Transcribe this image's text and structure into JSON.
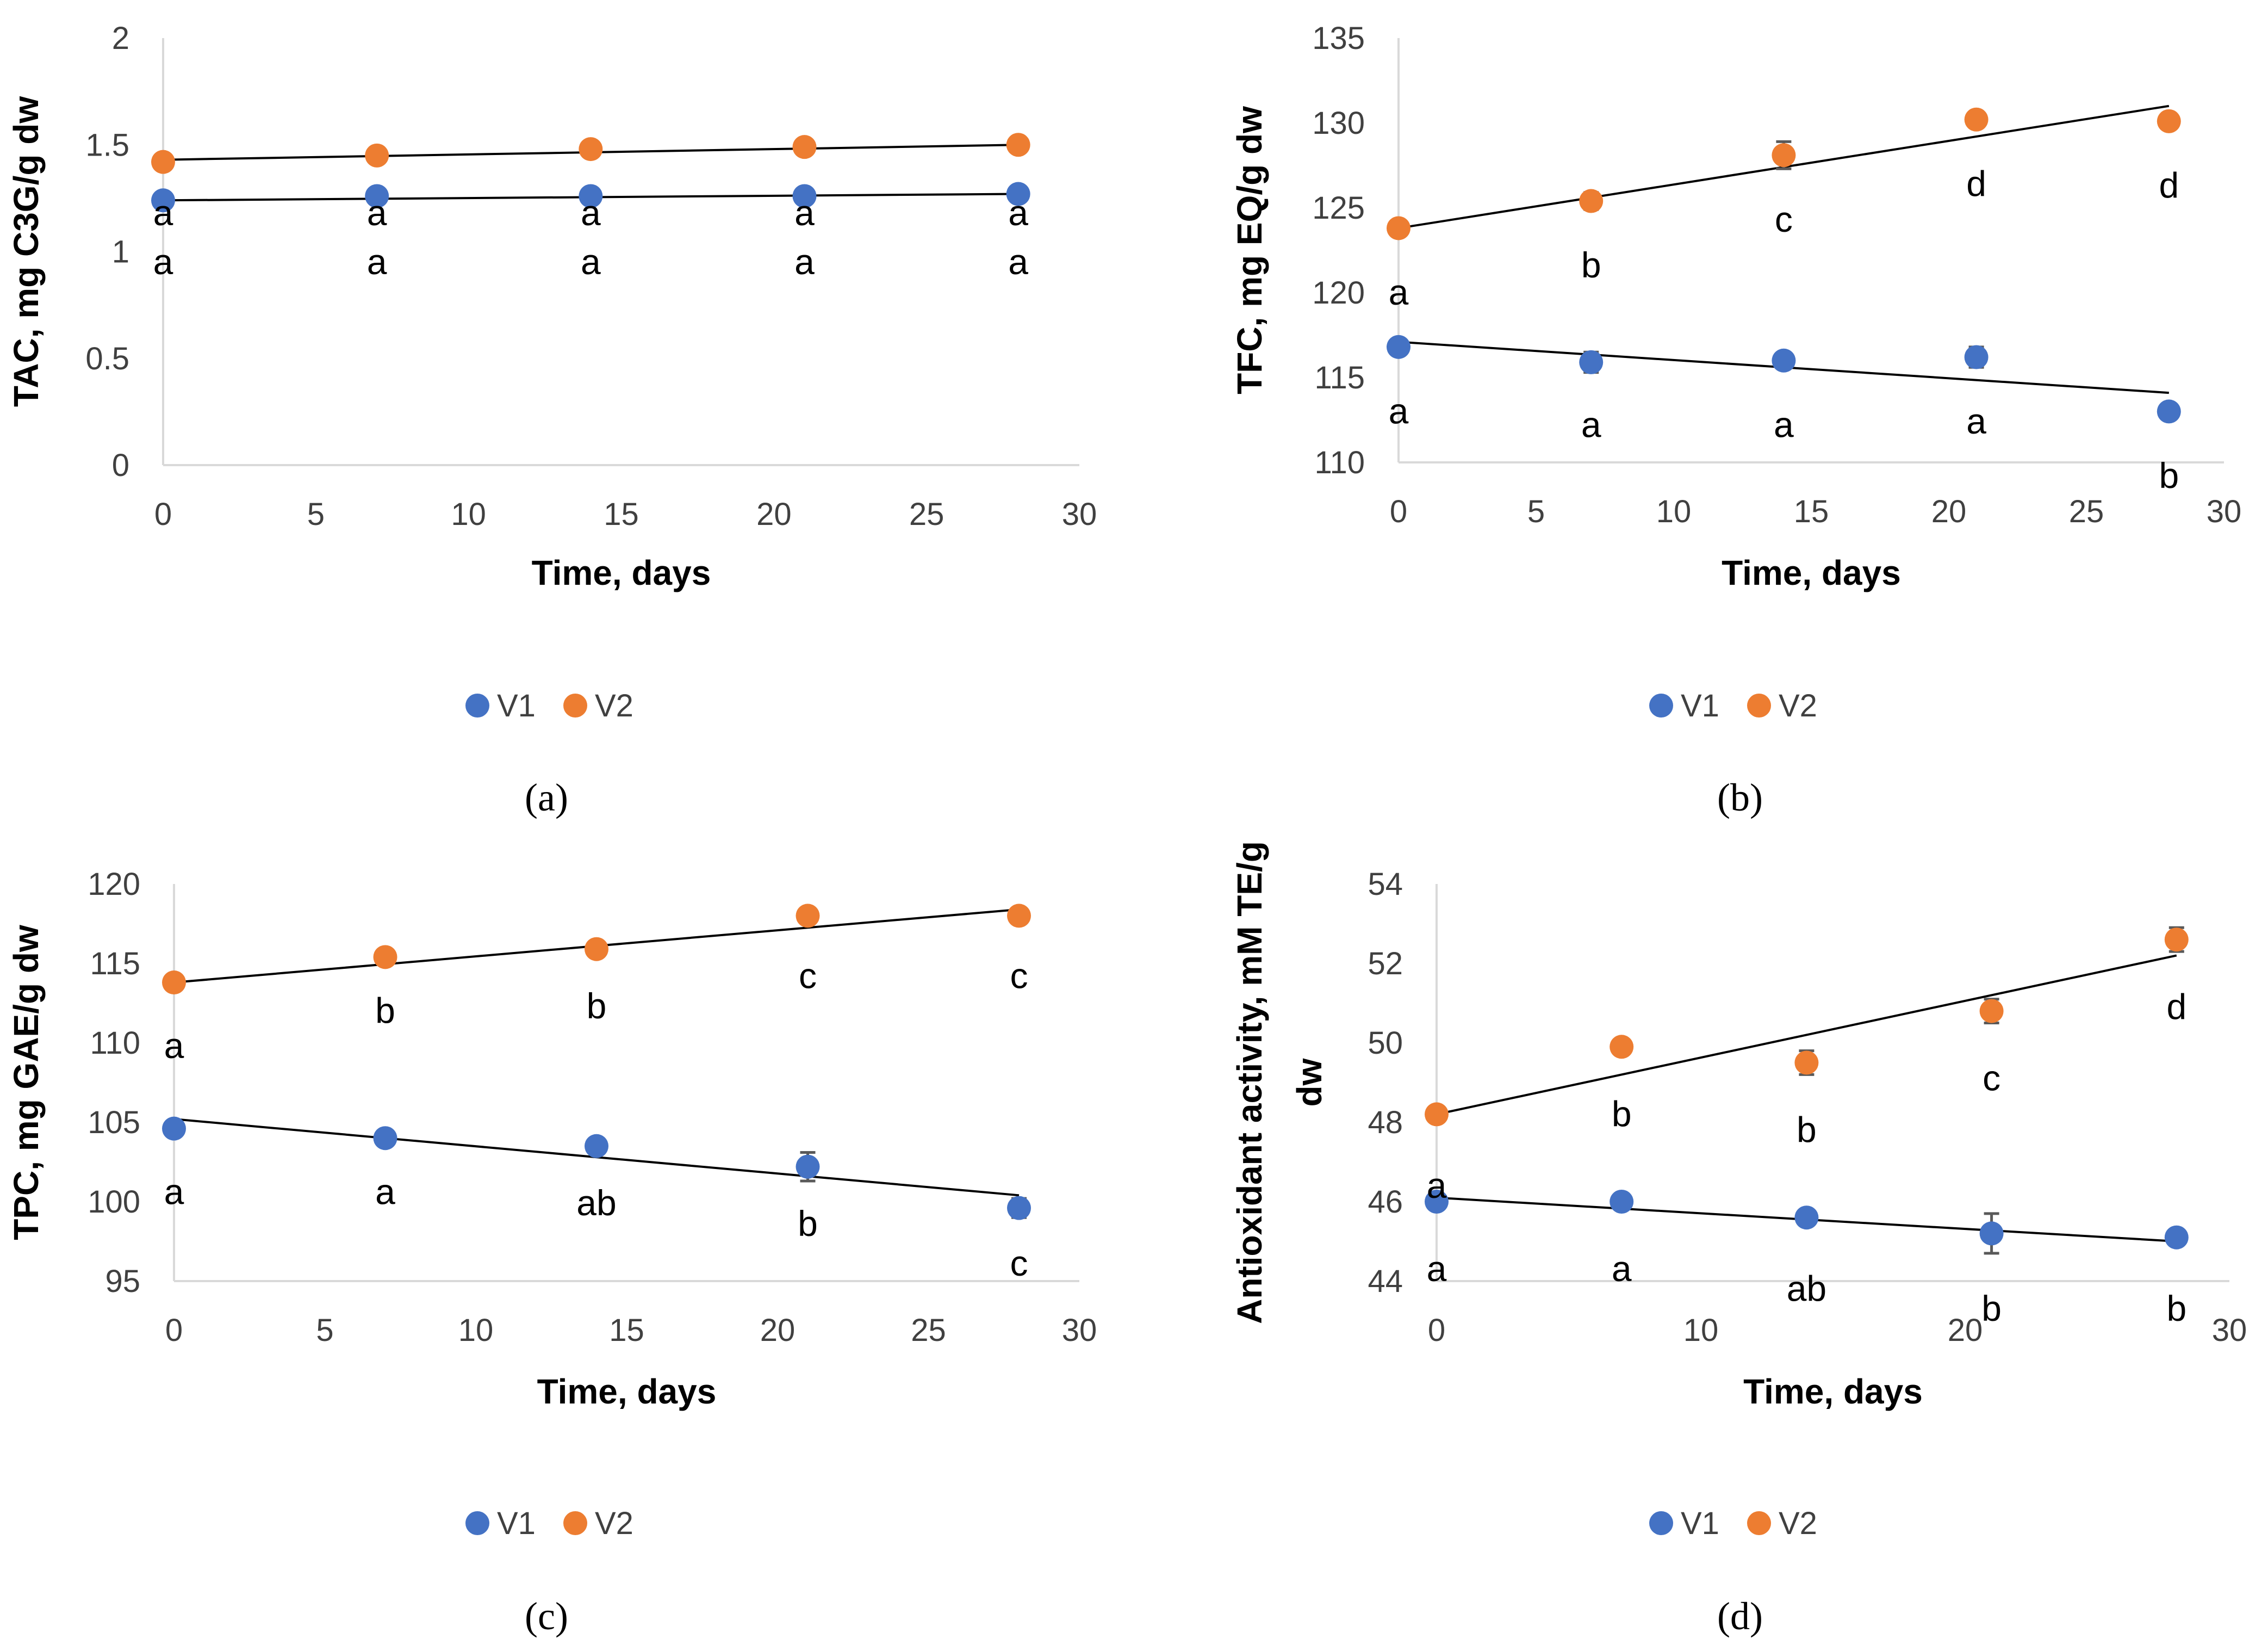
{
  "colors": {
    "V1": "#4472C4",
    "V2": "#ED7D31",
    "axis": "#D9D9D9",
    "trend": "#000000",
    "errorbar": "#595959"
  },
  "chart_data": [
    {
      "id": "a",
      "panel_label": "(a)",
      "type": "scatter",
      "xlabel": "Time, days",
      "ylabel": "TAC, mg C3G/g dw",
      "xlim": [
        0,
        30
      ],
      "ylim": [
        0,
        2
      ],
      "x_ticks": [
        "0",
        "5",
        "10",
        "15",
        "20",
        "25",
        "30"
      ],
      "y_ticks": [
        "0",
        "0.5",
        "1",
        "1.5",
        "2"
      ],
      "legend": [
        "V1",
        "V2"
      ],
      "series": [
        {
          "name": "V1",
          "x": [
            0,
            7,
            14,
            21,
            28
          ],
          "y": [
            1.24,
            1.26,
            1.26,
            1.26,
            1.27
          ],
          "err": [
            0.01,
            0.01,
            0.02,
            0.01,
            0.01
          ],
          "letters": [
            "a",
            "a",
            "a",
            "a",
            "a"
          ],
          "letter_y": [
            0.95,
            0.95,
            0.95,
            0.95,
            0.95
          ],
          "trend": [
            1.24,
            1.27
          ]
        },
        {
          "name": "V2",
          "x": [
            0,
            7,
            14,
            21,
            28
          ],
          "y": [
            1.42,
            1.45,
            1.48,
            1.49,
            1.5
          ],
          "err": [
            0.01,
            0.01,
            0.03,
            0.01,
            0.01
          ],
          "letters": [
            "a",
            "a",
            "a",
            "a",
            "a"
          ],
          "letter_y": [
            1.18,
            1.18,
            1.18,
            1.18,
            1.18
          ],
          "trend": [
            1.43,
            1.5
          ]
        }
      ]
    },
    {
      "id": "b",
      "panel_label": "(b)",
      "type": "scatter",
      "xlabel": "Time, days",
      "ylabel": "TFC, mg EQ/g dw",
      "xlim": [
        0,
        30
      ],
      "ylim": [
        110,
        135
      ],
      "x_ticks": [
        "0",
        "5",
        "10",
        "15",
        "20",
        "25",
        "30"
      ],
      "y_ticks": [
        "110",
        "115",
        "120",
        "125",
        "130",
        "135"
      ],
      "legend": [
        "V1",
        "V2"
      ],
      "series": [
        {
          "name": "V1",
          "x": [
            0,
            7,
            14,
            21,
            28
          ],
          "y": [
            116.8,
            115.9,
            116.0,
            116.2,
            113.0
          ],
          "err": [
            0.2,
            0.6,
            0.4,
            0.6,
            0.4
          ],
          "letters": [
            "a",
            "a",
            "a",
            "a",
            "b"
          ],
          "letter_y": [
            113.0,
            112.2,
            112.2,
            112.4,
            109.2
          ],
          "trend": [
            117.1,
            114.1
          ]
        },
        {
          "name": "V2",
          "x": [
            0,
            7,
            14,
            21,
            28
          ],
          "y": [
            123.8,
            125.4,
            128.1,
            130.2,
            130.1
          ],
          "err": [
            0.2,
            0.5,
            0.8,
            0.2,
            0.4
          ],
          "letters": [
            "a",
            "b",
            "c",
            "d",
            "d"
          ],
          "letter_y": [
            120.0,
            121.6,
            124.3,
            126.4,
            126.3
          ],
          "trend": [
            123.8,
            131.0
          ]
        }
      ]
    },
    {
      "id": "c",
      "panel_label": "(c)",
      "type": "scatter",
      "xlabel": "Time, days",
      "ylabel": "TPC, mg GAE/g dw",
      "xlim": [
        0,
        30
      ],
      "ylim": [
        95,
        120
      ],
      "x_ticks": [
        "0",
        "5",
        "10",
        "15",
        "20",
        "25",
        "30"
      ],
      "y_ticks": [
        "95",
        "100",
        "105",
        "110",
        "115",
        "120"
      ],
      "legend": [
        "V1",
        "V2"
      ],
      "series": [
        {
          "name": "V1",
          "x": [
            0,
            7,
            14,
            21,
            28
          ],
          "y": [
            104.6,
            104.0,
            103.5,
            102.2,
            99.6
          ],
          "err": [
            0.2,
            0.2,
            0.3,
            0.9,
            0.6
          ],
          "letters": [
            "a",
            "a",
            "ab",
            "b",
            "c"
          ],
          "letter_y": [
            100.6,
            100.6,
            99.9,
            98.6,
            96.1
          ],
          "trend": [
            105.2,
            100.4
          ]
        },
        {
          "name": "V2",
          "x": [
            0,
            7,
            14,
            21,
            28
          ],
          "y": [
            113.8,
            115.4,
            115.9,
            118.0,
            118.0
          ],
          "err": [
            0.2,
            0.2,
            0.2,
            0.2,
            0.2
          ],
          "letters": [
            "a",
            "b",
            "b",
            "c",
            "c"
          ],
          "letter_y": [
            109.8,
            112.0,
            112.3,
            114.2,
            114.2
          ],
          "trend": [
            113.8,
            118.4
          ]
        }
      ]
    },
    {
      "id": "d",
      "panel_label": "(d)",
      "type": "scatter",
      "xlabel": "Time, days",
      "ylabel": "Antioxidant activity, mM TE/g dw",
      "xlim": [
        0,
        30
      ],
      "ylim": [
        44,
        54
      ],
      "x_ticks": [
        "0",
        "10",
        "20",
        "30"
      ],
      "y_ticks": [
        "44",
        "46",
        "48",
        "50",
        "52",
        "54"
      ],
      "legend": [
        "V1",
        "V2"
      ],
      "series": [
        {
          "name": "V1",
          "x": [
            0,
            7,
            14,
            21,
            28
          ],
          "y": [
            46.0,
            46.0,
            45.6,
            45.2,
            45.1
          ],
          "err": [
            0.1,
            0.1,
            0.1,
            0.5,
            0.1
          ],
          "letters": [
            "a",
            "a",
            "ab",
            "b",
            "b"
          ],
          "letter_y": [
            44.3,
            44.3,
            43.8,
            43.3,
            43.3
          ],
          "trend": [
            46.1,
            45.0
          ]
        },
        {
          "name": "V2",
          "x": [
            0,
            7,
            14,
            21,
            28
          ],
          "y": [
            48.2,
            49.9,
            49.5,
            50.8,
            52.6
          ],
          "err": [
            0.1,
            0.1,
            0.3,
            0.3,
            0.3
          ],
          "letters": [
            "a",
            "b",
            "b",
            "c",
            "d"
          ],
          "letter_y": [
            46.4,
            48.2,
            47.8,
            49.1,
            50.9
          ],
          "trend": [
            48.2,
            52.2
          ]
        }
      ]
    }
  ]
}
